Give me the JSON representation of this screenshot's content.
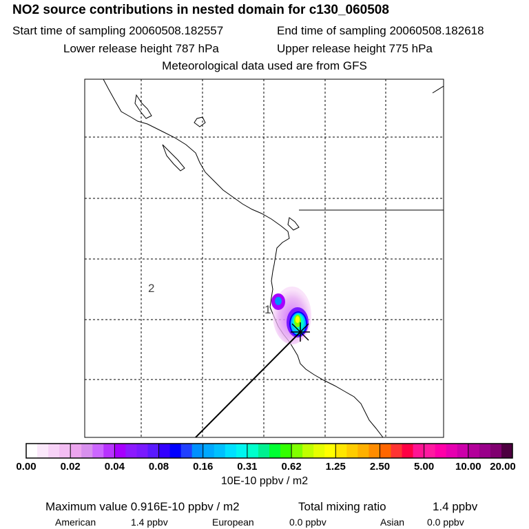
{
  "header": {
    "title": "NO2 source contributions in nested domain for c130_060508",
    "start_time": "Start time of sampling 20060508.182557",
    "end_time": "End time of sampling 20060508.182618",
    "lower_release": "Lower release height  787 hPa",
    "upper_release": "Upper release height  775 hPa",
    "met_data": "Meteorological data used are from GFS"
  },
  "map": {
    "labels": [
      "1",
      "2"
    ]
  },
  "colorbar": {
    "tick_labels": [
      "0.00",
      "0.02",
      "0.04",
      "0.08",
      "0.16",
      "0.31",
      "0.62",
      "1.25",
      "2.50",
      "5.00",
      "10.00",
      "20.00"
    ],
    "units": "10E-10 ppbv / m2",
    "colors": [
      "#ffffff",
      "#fbe8fb",
      "#f7d2f7",
      "#f2bdf2",
      "#eca5ee",
      "#d890ee",
      "#cc66ff",
      "#b833ff",
      "#a600ff",
      "#8c1aff",
      "#7a1aff",
      "#5a1aff",
      "#3300ff",
      "#0000ff",
      "#2040ff",
      "#0090ff",
      "#00a8ff",
      "#00c0ff",
      "#00e0ff",
      "#00f5f0",
      "#00ffcc",
      "#00f090",
      "#00ff33",
      "#33ff00",
      "#80ff00",
      "#c0ff00",
      "#e6ff00",
      "#ffff00",
      "#ffe600",
      "#ffcc00",
      "#ffb000",
      "#ff8c00",
      "#ff6600",
      "#ff3333",
      "#ff0044",
      "#ff1493",
      "#ff1aa0",
      "#ff00a8",
      "#e600b0",
      "#cc00aa",
      "#b3009a",
      "#99008a",
      "#800070",
      "#4d0040"
    ]
  },
  "summary": {
    "max_value": "Maximum value  0.916E-10 ppbv / m2",
    "total_mixing": "Total mixing ratio",
    "total_value": "1.4 ppbv",
    "american_label": "American",
    "american_value": "1.4 ppbv",
    "european_label": "European",
    "european_value": "0.0 ppbv",
    "asian_label": "Asian",
    "asian_value": "0.0 ppbv"
  }
}
